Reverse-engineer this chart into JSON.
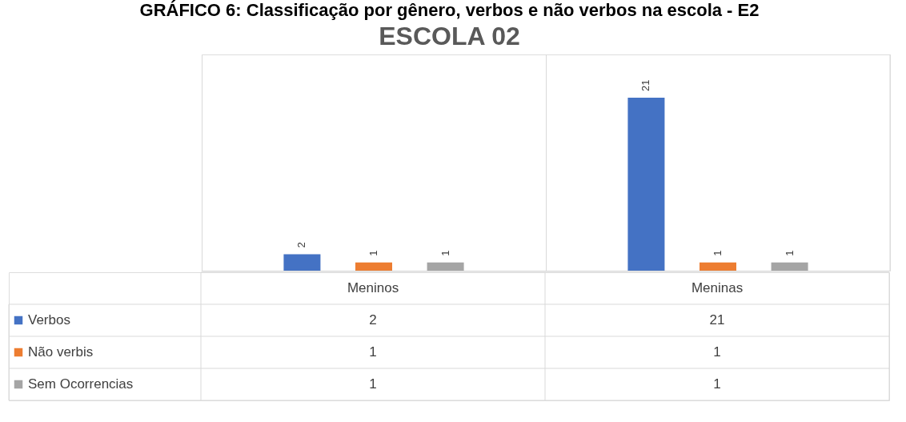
{
  "chart_data": {
    "type": "bar",
    "title": "GRÁFICO 6: Classificação por gênero, verbos e não verbos na escola - E2",
    "subtitle": "ESCOLA 02",
    "categories": [
      "Meninos",
      "Meninas"
    ],
    "series": [
      {
        "name": "Verbos",
        "color": "#4472c4",
        "values": [
          2,
          21
        ],
        "value_labels": [
          "2",
          "21"
        ]
      },
      {
        "name": "Não verbis",
        "color": "#ed7d31",
        "values": [
          1,
          1
        ],
        "value_labels": [
          "1",
          "1"
        ]
      },
      {
        "name": "Sem Ocorrencias",
        "color": "#a5a5a5",
        "values": [
          1,
          1
        ],
        "value_labels": [
          "1",
          "1"
        ]
      }
    ],
    "legend": "left",
    "grid": "x"
  }
}
